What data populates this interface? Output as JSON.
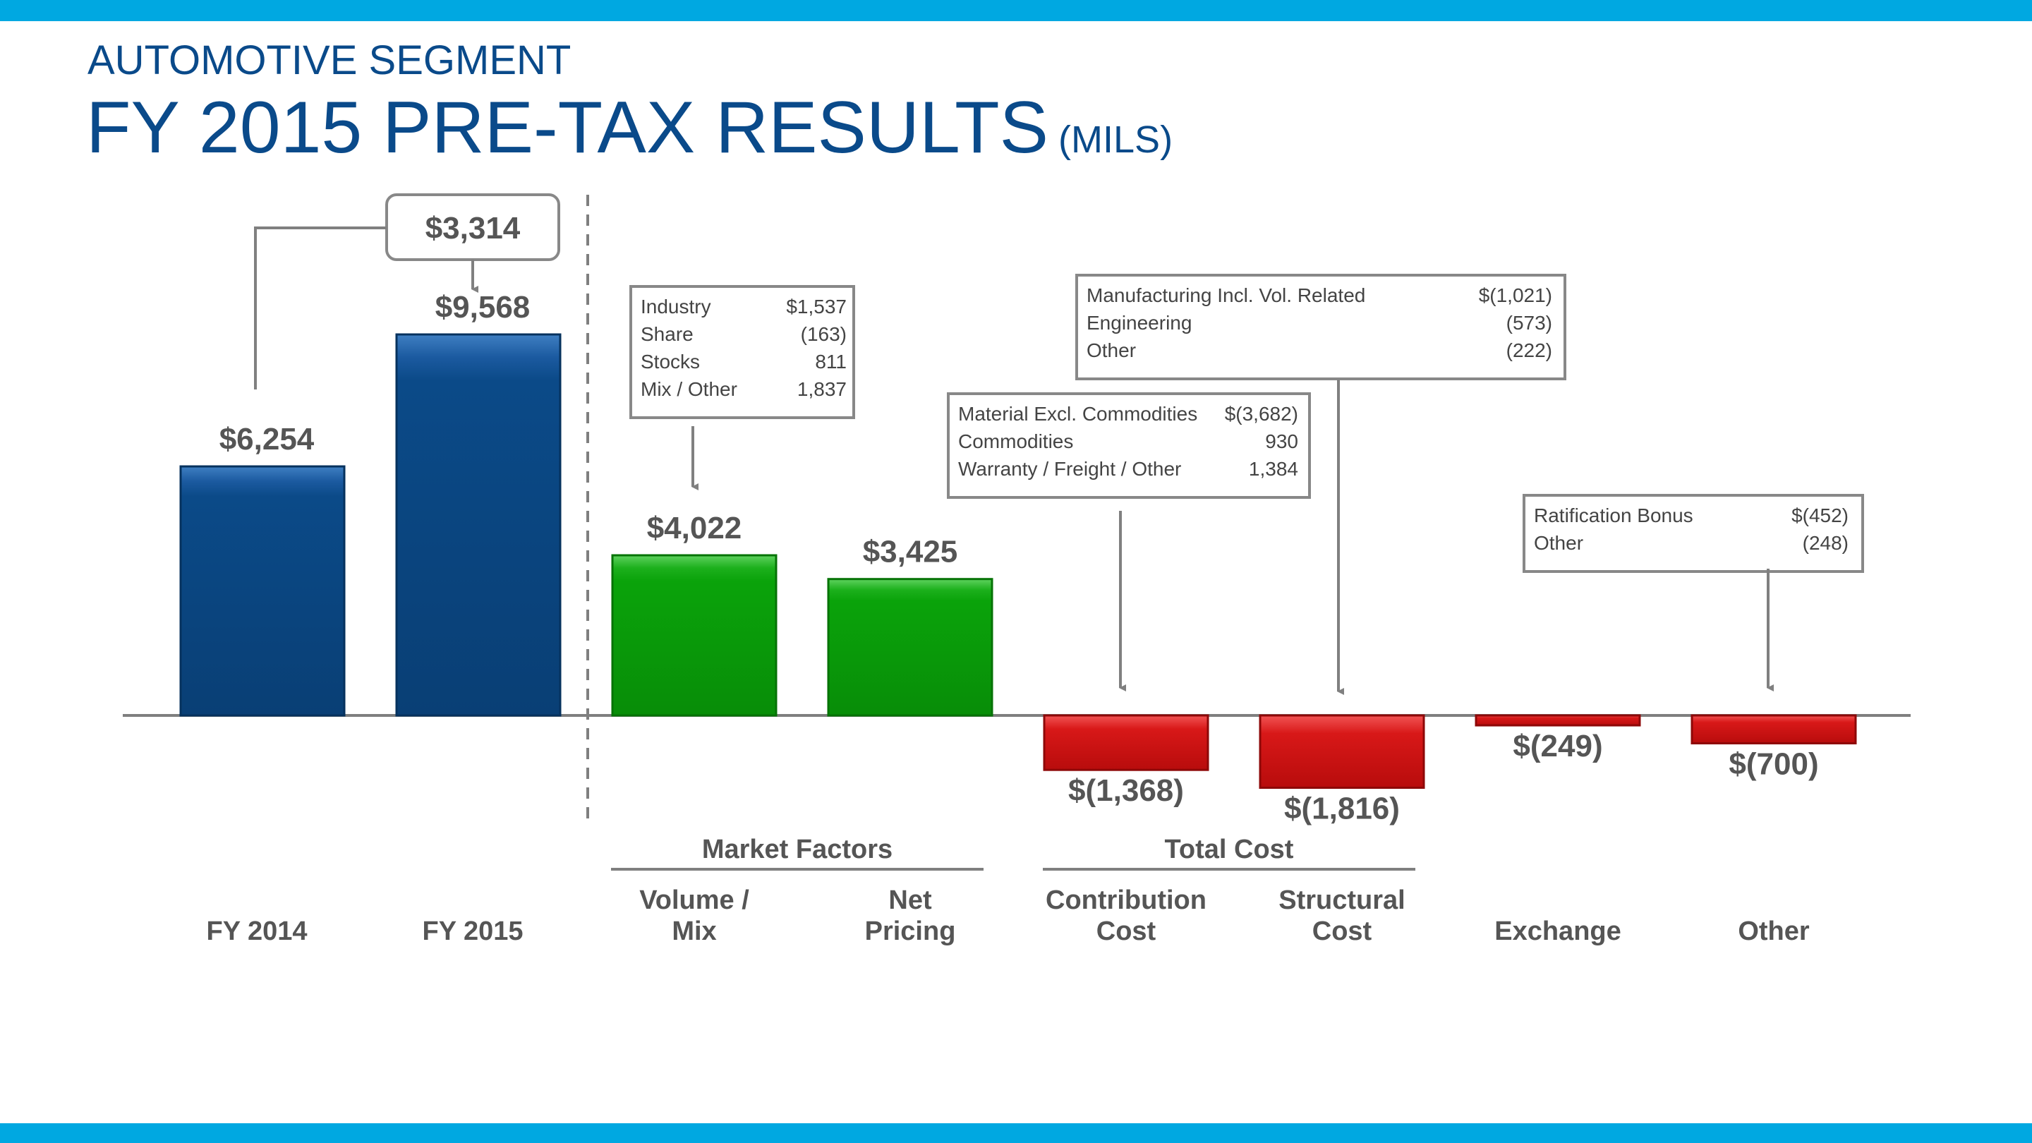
{
  "header": {
    "subtitle": "AUTOMOTIVE SEGMENT",
    "title": "FY 2015 PRE-TAX RESULTS",
    "units": "(MILS)"
  },
  "colors": {
    "accent_band": "#00a8e1",
    "title": "#0a4a8a",
    "bar_base": "#0b4a88",
    "bar_positive": "#0aa30a",
    "bar_negative": "#d20f0f",
    "text": "#555555",
    "box_border": "#888888"
  },
  "chart_data": {
    "type": "bar",
    "title": "FY 2015 Pre-Tax Results (Mils)",
    "ylim": [
      -2000,
      10000
    ],
    "series": [
      {
        "name": "FY 2014",
        "label": [
          "FY 2014"
        ],
        "value": 6254,
        "display": "$6,254",
        "kind": "base"
      },
      {
        "name": "FY 2015",
        "label": [
          "FY 2015"
        ],
        "value": 9568,
        "display": "$9,568",
        "kind": "base"
      },
      {
        "name": "Volume / Mix",
        "label": [
          "Volume /",
          "Mix"
        ],
        "value": 4022,
        "display": "$4,022",
        "kind": "positive"
      },
      {
        "name": "Net Pricing",
        "label": [
          "Net",
          "Pricing"
        ],
        "value": 3425,
        "display": "$3,425",
        "kind": "positive"
      },
      {
        "name": "Contribution Cost",
        "label": [
          "Contribution",
          "Cost"
        ],
        "value": -1368,
        "display": "$(1,368)",
        "kind": "negative"
      },
      {
        "name": "Structural Cost",
        "label": [
          "Structural",
          "Cost"
        ],
        "value": -1816,
        "display": "$(1,816)",
        "kind": "negative"
      },
      {
        "name": "Exchange",
        "label": [
          "Exchange"
        ],
        "value": -249,
        "display": "$(249)",
        "kind": "negative"
      },
      {
        "name": "Other",
        "label": [
          "Other"
        ],
        "value": -700,
        "display": "$(700)",
        "kind": "negative"
      }
    ],
    "change": {
      "display": "$3,314",
      "value": 3314
    },
    "groups": [
      {
        "label": "Market Factors",
        "from": 2,
        "to": 3
      },
      {
        "label": "Total Cost",
        "from": 4,
        "to": 5
      }
    ],
    "callouts": [
      {
        "target": 2,
        "rows": [
          [
            "Industry",
            "$1,537"
          ],
          [
            "Share",
            "(163)"
          ],
          [
            "Stocks",
            "811"
          ],
          [
            "Mix / Other",
            "1,837"
          ]
        ]
      },
      {
        "target": 4,
        "rows": [
          [
            "Material Excl. Commodities",
            "$(3,682)"
          ],
          [
            "Commodities",
            "930"
          ],
          [
            "Warranty / Freight / Other",
            "1,384"
          ]
        ]
      },
      {
        "target": 5,
        "rows": [
          [
            "Manufacturing Incl. Vol. Related",
            "$(1,021)"
          ],
          [
            "Engineering",
            "(573)"
          ],
          [
            "Other",
            "(222)"
          ]
        ]
      },
      {
        "target": 7,
        "rows": [
          [
            "Ratification Bonus",
            "$(452)"
          ],
          [
            "Other",
            "(248)"
          ]
        ]
      }
    ]
  }
}
